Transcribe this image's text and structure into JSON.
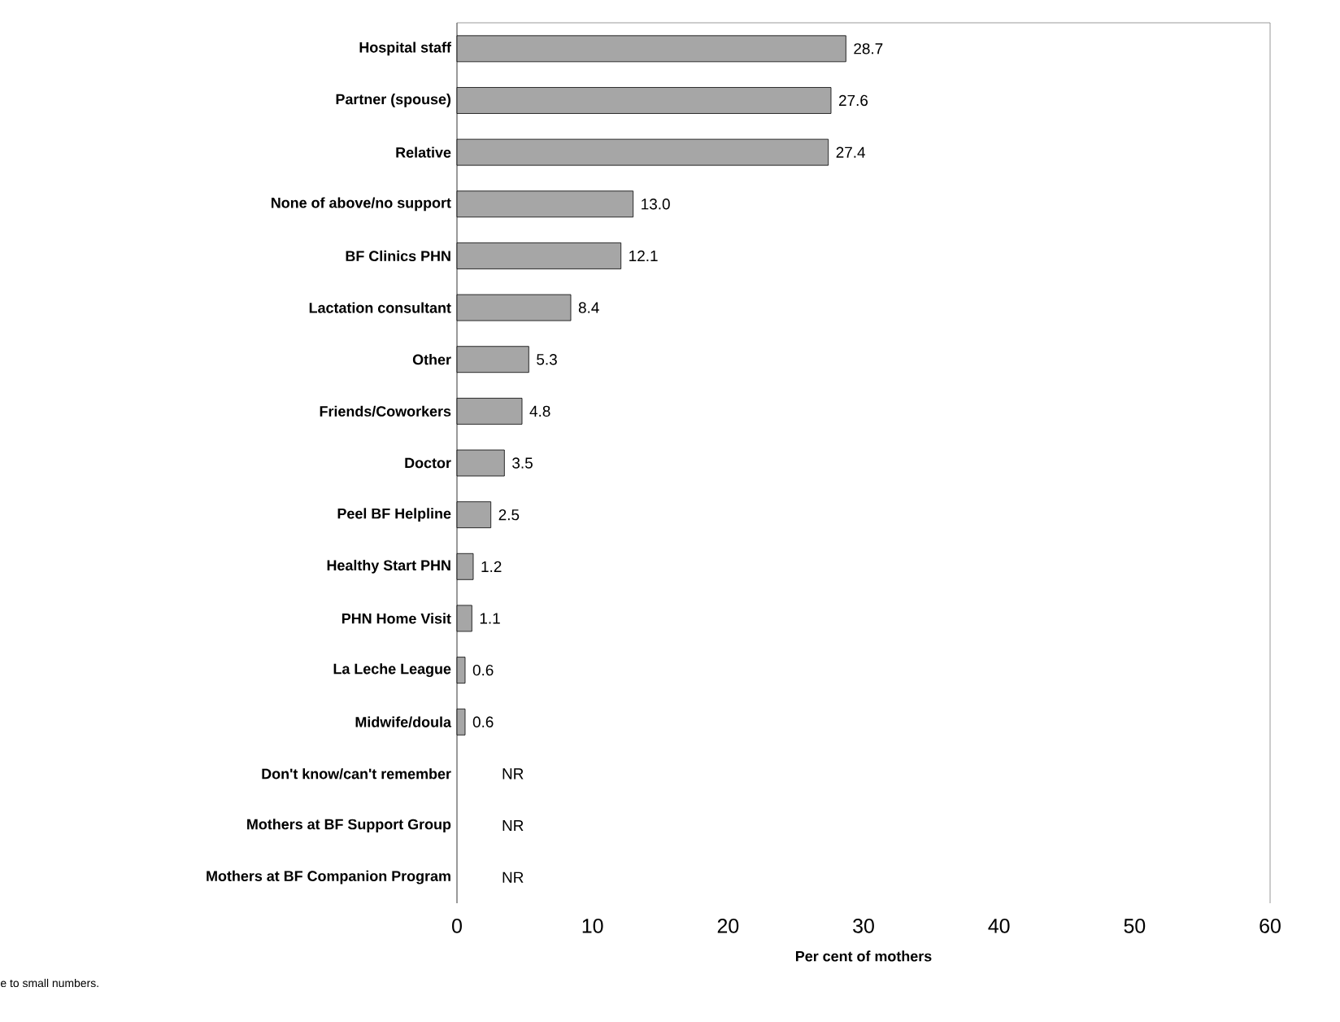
{
  "chart_data": {
    "type": "bar",
    "orientation": "horizontal",
    "categories": [
      "Hospital staff",
      "Partner (spouse)",
      "Relative",
      "None of above/no support",
      "BF Clinics PHN",
      "Lactation consultant",
      "Other",
      "Friends/Coworkers",
      "Doctor",
      "Peel BF Helpline",
      "Healthy Start PHN",
      "PHN Home Visit",
      "La Leche League",
      "Midwife/doula",
      "Don't know/can't remember",
      "Mothers at BF Support Group",
      "Mothers at BF Companion Program"
    ],
    "values": [
      28.7,
      27.6,
      27.4,
      13.0,
      12.1,
      8.4,
      5.3,
      4.8,
      3.5,
      2.5,
      1.2,
      1.1,
      0.6,
      0.6,
      null,
      null,
      null
    ],
    "value_labels": [
      "28.7",
      "27.6",
      "27.4",
      "13.0",
      "12.1",
      "8.4",
      "5.3",
      "4.8",
      "3.5",
      "2.5",
      "1.2",
      "1.1",
      "0.6",
      "0.6",
      "NR",
      "NR",
      "NR"
    ],
    "color": "#a6a6a6",
    "xlim": [
      0,
      60
    ],
    "xticks": [
      0,
      10,
      20,
      30,
      40,
      50,
      60
    ],
    "xlabel": "Per cent of mothers",
    "annotations": [
      "e to small numbers."
    ]
  }
}
